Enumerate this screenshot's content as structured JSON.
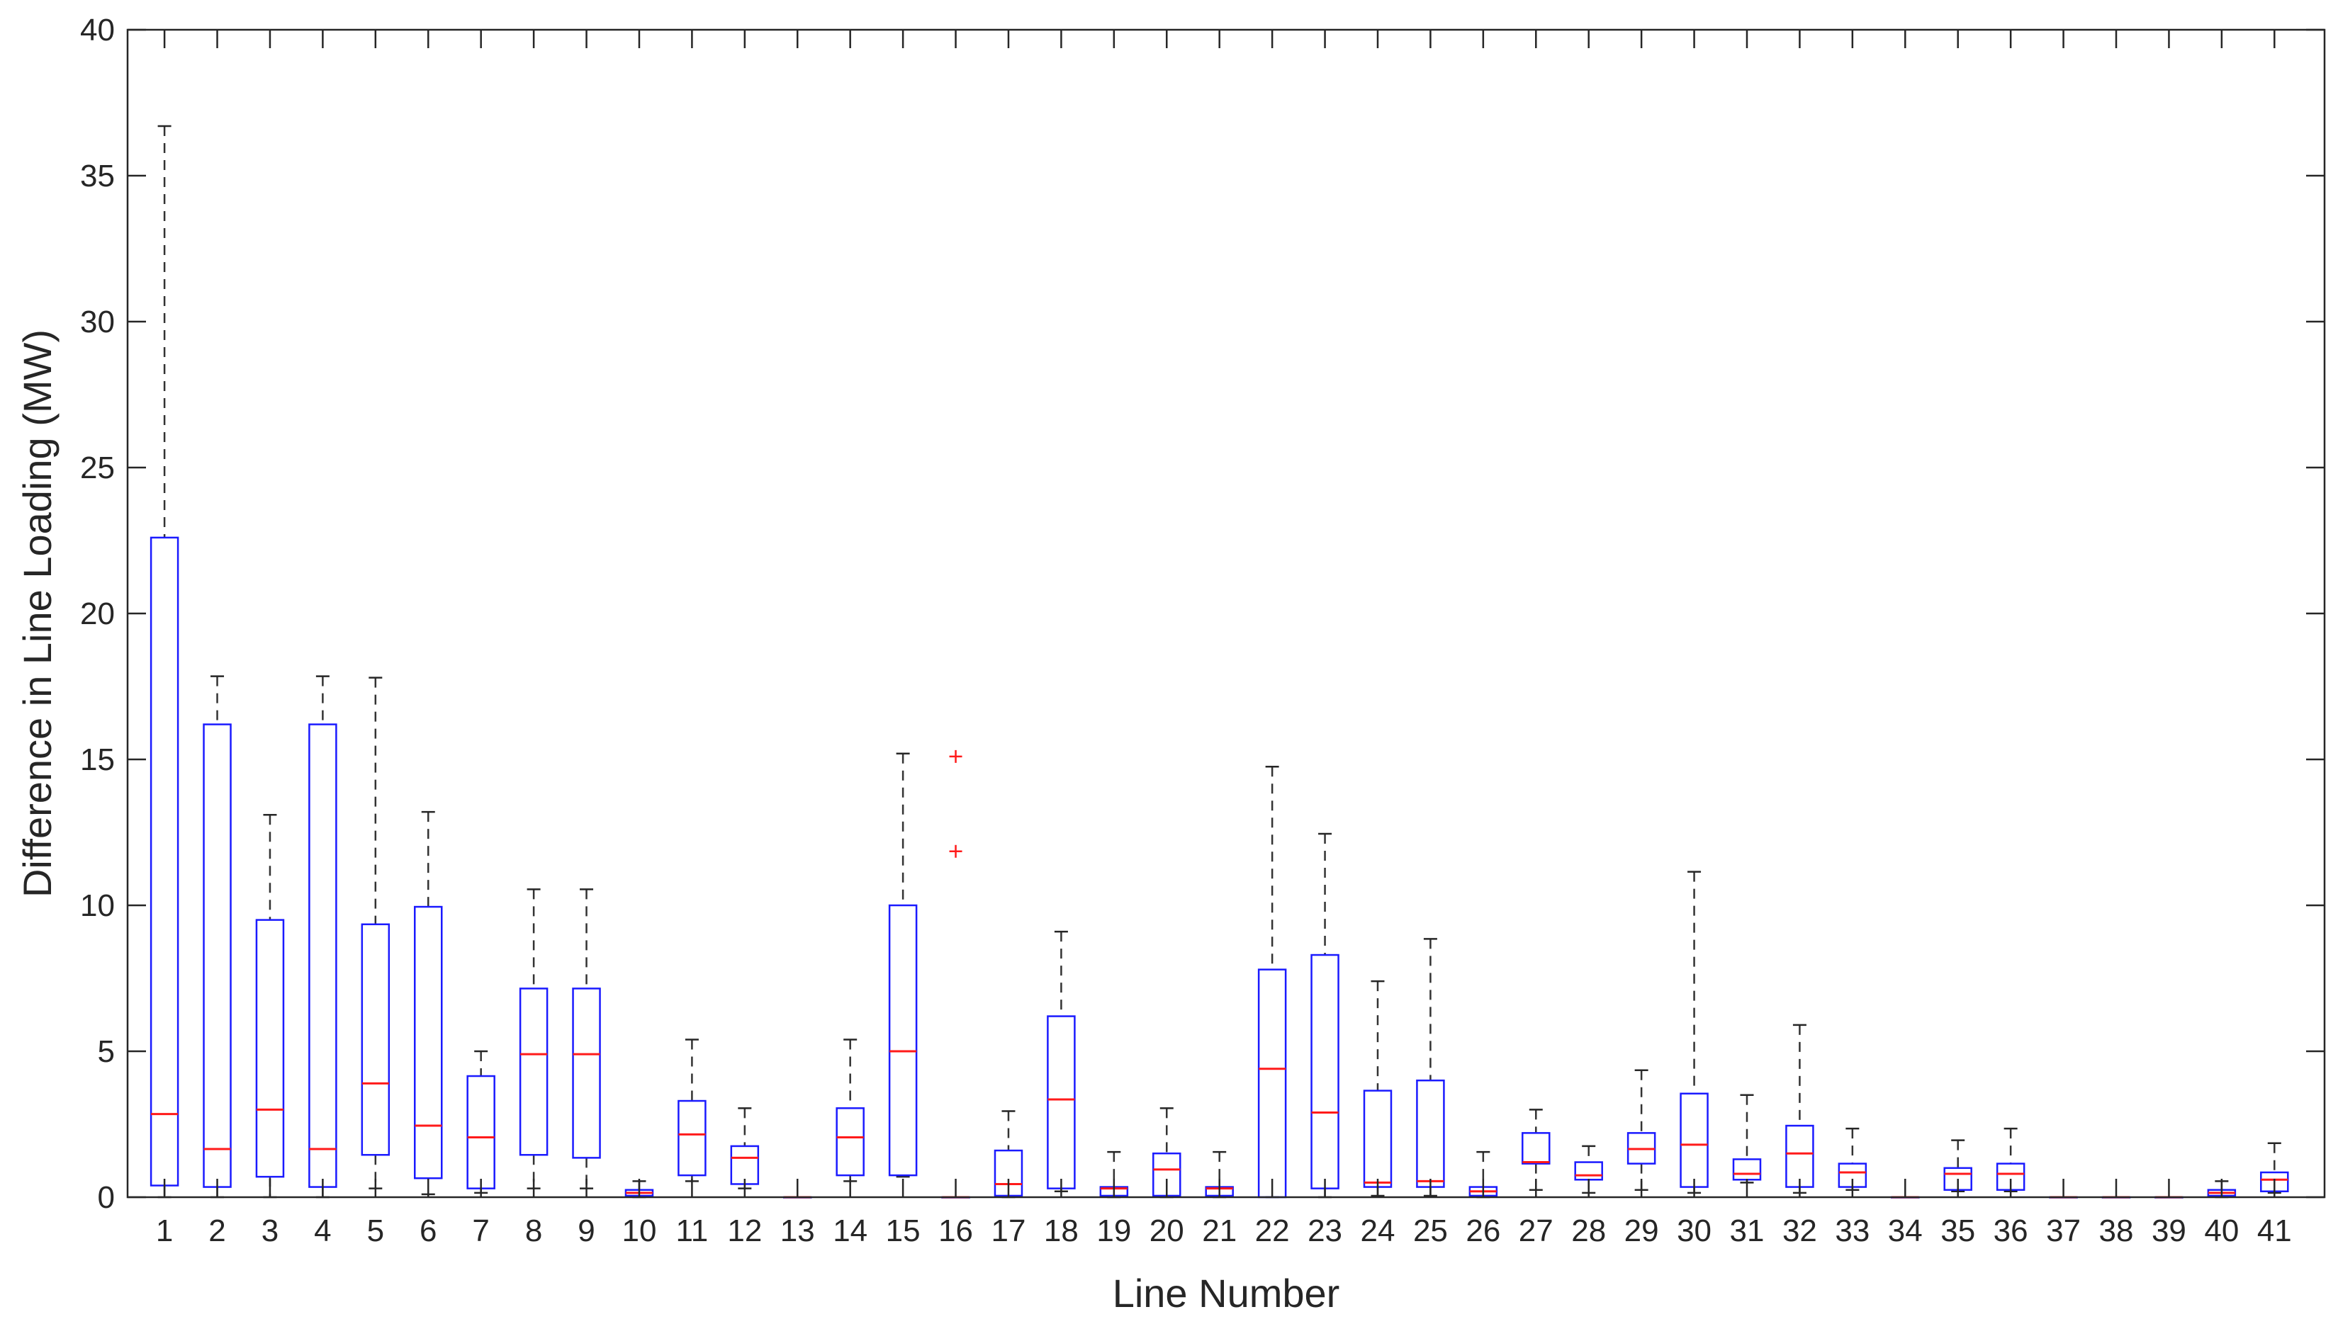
{
  "chart_data": {
    "type": "box",
    "xlabel": "Line Number",
    "ylabel": "Difference in Line Loading (MW)",
    "ylim": [
      0,
      40
    ],
    "yticks": [
      0,
      5,
      10,
      15,
      20,
      25,
      30,
      35,
      40
    ],
    "grid": false,
    "colors": {
      "box": "#1a1aff",
      "median": "#ff1a1a",
      "whisker": "#333333",
      "outlier": "#ff1a1a",
      "axis": "#262626"
    },
    "categories": [
      "1",
      "2",
      "3",
      "4",
      "5",
      "6",
      "7",
      "8",
      "9",
      "10",
      "11",
      "12",
      "13",
      "14",
      "15",
      "16",
      "17",
      "18",
      "19",
      "20",
      "21",
      "22",
      "23",
      "24",
      "25",
      "26",
      "27",
      "28",
      "29",
      "30",
      "31",
      "32",
      "33",
      "34",
      "35",
      "36",
      "37",
      "38",
      "39",
      "40",
      "41"
    ],
    "boxes": [
      {
        "min": 0.0,
        "q1": 0.4,
        "median": 2.85,
        "q3": 22.6,
        "max": 36.7,
        "outliers": []
      },
      {
        "min": 0.0,
        "q1": 0.35,
        "median": 1.65,
        "q3": 16.2,
        "max": 17.85,
        "outliers": []
      },
      {
        "min": 0.0,
        "q1": 0.7,
        "median": 3.0,
        "q3": 9.5,
        "max": 13.1,
        "outliers": []
      },
      {
        "min": 0.0,
        "q1": 0.35,
        "median": 1.65,
        "q3": 16.2,
        "max": 17.85,
        "outliers": []
      },
      {
        "min": 0.3,
        "q1": 1.45,
        "median": 3.9,
        "q3": 9.35,
        "max": 17.8,
        "outliers": []
      },
      {
        "min": 0.1,
        "q1": 0.65,
        "median": 2.45,
        "q3": 9.95,
        "max": 13.2,
        "outliers": []
      },
      {
        "min": 0.15,
        "q1": 0.3,
        "median": 2.05,
        "q3": 4.15,
        "max": 5.0,
        "outliers": []
      },
      {
        "min": 0.3,
        "q1": 1.45,
        "median": 4.9,
        "q3": 7.15,
        "max": 10.55,
        "outliers": []
      },
      {
        "min": 0.3,
        "q1": 1.35,
        "median": 4.9,
        "q3": 7.15,
        "max": 10.55,
        "outliers": []
      },
      {
        "min": 0.0,
        "q1": 0.05,
        "median": 0.15,
        "q3": 0.25,
        "max": 0.55,
        "outliers": []
      },
      {
        "min": 0.55,
        "q1": 0.75,
        "median": 2.15,
        "q3": 3.3,
        "max": 5.4,
        "outliers": []
      },
      {
        "min": 0.3,
        "q1": 0.45,
        "median": 1.35,
        "q3": 1.75,
        "max": 3.05,
        "outliers": []
      },
      {
        "min": 0.0,
        "q1": 0.0,
        "median": 0.0,
        "q3": 0.0,
        "max": 0.0,
        "outliers": []
      },
      {
        "min": 0.55,
        "q1": 0.75,
        "median": 2.05,
        "q3": 3.05,
        "max": 5.4,
        "outliers": []
      },
      {
        "min": 0.7,
        "q1": 0.75,
        "median": 5.0,
        "q3": 10.0,
        "max": 15.2,
        "outliers": []
      },
      {
        "min": 0.0,
        "q1": 0.0,
        "median": 0.0,
        "q3": 0.0,
        "max": 0.0,
        "outliers": [
          11.85,
          15.1
        ]
      },
      {
        "min": 0.0,
        "q1": 0.05,
        "median": 0.45,
        "q3": 1.6,
        "max": 2.95,
        "outliers": []
      },
      {
        "min": 0.2,
        "q1": 0.3,
        "median": 3.35,
        "q3": 6.2,
        "max": 9.1,
        "outliers": []
      },
      {
        "min": 0.0,
        "q1": 0.05,
        "median": 0.3,
        "q3": 0.35,
        "max": 1.55,
        "outliers": []
      },
      {
        "min": 0.0,
        "q1": 0.05,
        "median": 0.95,
        "q3": 1.5,
        "max": 3.05,
        "outliers": []
      },
      {
        "min": 0.0,
        "q1": 0.05,
        "median": 0.3,
        "q3": 0.35,
        "max": 1.55,
        "outliers": []
      },
      {
        "min": 0.0,
        "q1": 0.0,
        "median": 4.4,
        "q3": 7.8,
        "max": 14.75,
        "outliers": []
      },
      {
        "min": 0.0,
        "q1": 0.3,
        "median": 2.9,
        "q3": 8.3,
        "max": 12.45,
        "outliers": []
      },
      {
        "min": 0.05,
        "q1": 0.35,
        "median": 0.5,
        "q3": 3.65,
        "max": 7.4,
        "outliers": []
      },
      {
        "min": 0.05,
        "q1": 0.35,
        "median": 0.55,
        "q3": 4.0,
        "max": 8.85,
        "outliers": []
      },
      {
        "min": 0.0,
        "q1": 0.05,
        "median": 0.2,
        "q3": 0.35,
        "max": 1.55,
        "outliers": []
      },
      {
        "min": 0.25,
        "q1": 1.15,
        "median": 1.2,
        "q3": 2.2,
        "max": 3.0,
        "outliers": []
      },
      {
        "min": 0.15,
        "q1": 0.6,
        "median": 0.75,
        "q3": 1.2,
        "max": 1.75,
        "outliers": []
      },
      {
        "min": 0.25,
        "q1": 1.15,
        "median": 1.65,
        "q3": 2.2,
        "max": 4.35,
        "outliers": []
      },
      {
        "min": 0.15,
        "q1": 0.35,
        "median": 1.8,
        "q3": 3.55,
        "max": 11.15,
        "outliers": []
      },
      {
        "min": 0.5,
        "q1": 0.6,
        "median": 0.8,
        "q3": 1.3,
        "max": 3.5,
        "outliers": []
      },
      {
        "min": 0.15,
        "q1": 0.35,
        "median": 1.5,
        "q3": 2.45,
        "max": 5.9,
        "outliers": []
      },
      {
        "min": 0.25,
        "q1": 0.35,
        "median": 0.85,
        "q3": 1.15,
        "max": 2.35,
        "outliers": []
      },
      {
        "min": 0.0,
        "q1": 0.0,
        "median": 0.0,
        "q3": 0.0,
        "max": 0.0,
        "outliers": []
      },
      {
        "min": 0.2,
        "q1": 0.25,
        "median": 0.8,
        "q3": 1.0,
        "max": 1.95,
        "outliers": []
      },
      {
        "min": 0.2,
        "q1": 0.25,
        "median": 0.8,
        "q3": 1.15,
        "max": 2.35,
        "outliers": []
      },
      {
        "min": 0.0,
        "q1": 0.0,
        "median": 0.0,
        "q3": 0.0,
        "max": 0.0,
        "outliers": []
      },
      {
        "min": 0.0,
        "q1": 0.0,
        "median": 0.0,
        "q3": 0.0,
        "max": 0.0,
        "outliers": []
      },
      {
        "min": 0.0,
        "q1": 0.0,
        "median": 0.0,
        "q3": 0.0,
        "max": 0.0,
        "outliers": []
      },
      {
        "min": 0.0,
        "q1": 0.05,
        "median": 0.15,
        "q3": 0.25,
        "max": 0.55,
        "outliers": []
      },
      {
        "min": 0.15,
        "q1": 0.2,
        "median": 0.6,
        "q3": 0.85,
        "max": 1.85,
        "outliers": []
      }
    ]
  }
}
